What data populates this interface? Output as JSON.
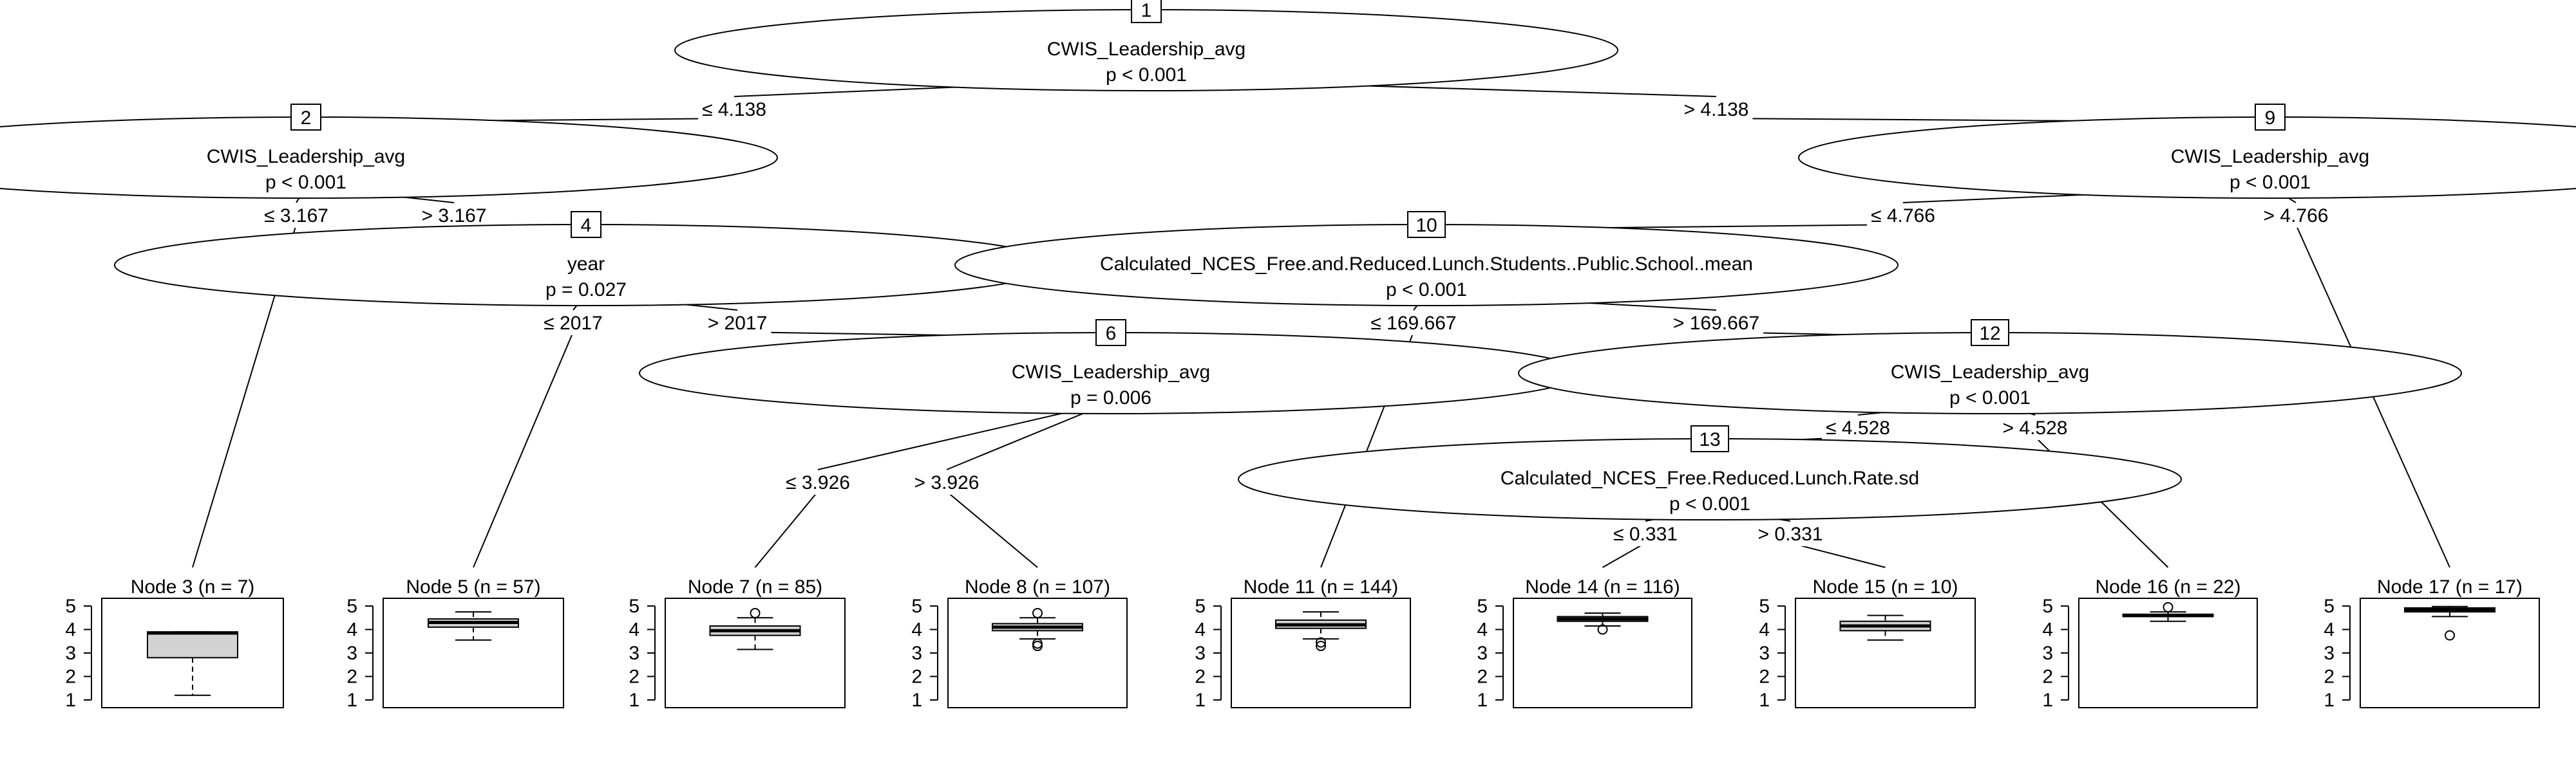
{
  "diagram": {
    "type": "conditional-inference-tree",
    "inner_nodes": [
      {
        "id": "1",
        "variable": "CWIS_Leadership_avg",
        "p": "p < 0.001"
      },
      {
        "id": "2",
        "variable": "CWIS_Leadership_avg",
        "p": "p < 0.001"
      },
      {
        "id": "4",
        "variable": "year",
        "p": "p = 0.027"
      },
      {
        "id": "6",
        "variable": "CWIS_Leadership_avg",
        "p": "p = 0.006"
      },
      {
        "id": "9",
        "variable": "CWIS_Leadership_avg",
        "p": "p < 0.001"
      },
      {
        "id": "10",
        "variable": "Calculated_NCES_Free.and.Reduced.Lunch.Students..Public.School..mean",
        "p": "p < 0.001"
      },
      {
        "id": "12",
        "variable": "CWIS_Leadership_avg",
        "p": "p < 0.001"
      },
      {
        "id": "13",
        "variable": "Calculated_NCES_Free.Reduced.Lunch.Rate.sd",
        "p": "p < 0.001"
      }
    ],
    "edges": [
      {
        "from": "1",
        "to": "2",
        "label": "≤ 4.138"
      },
      {
        "from": "1",
        "to": "9",
        "label": "> 4.138"
      },
      {
        "from": "2",
        "to": "3",
        "label": "≤ 3.167"
      },
      {
        "from": "2",
        "to": "4",
        "label": "> 3.167"
      },
      {
        "from": "4",
        "to": "5",
        "label": "≤ 2017"
      },
      {
        "from": "4",
        "to": "6",
        "label": "> 2017"
      },
      {
        "from": "6",
        "to": "7",
        "label": "≤ 3.926"
      },
      {
        "from": "6",
        "to": "8",
        "label": "> 3.926"
      },
      {
        "from": "9",
        "to": "10",
        "label": "≤ 4.766"
      },
      {
        "from": "9",
        "to": "17",
        "label": "> 4.766"
      },
      {
        "from": "10",
        "to": "11",
        "label": "≤ 169.667"
      },
      {
        "from": "10",
        "to": "12",
        "label": "> 169.667"
      },
      {
        "from": "12",
        "to": "13",
        "label": "≤ 4.528"
      },
      {
        "from": "12",
        "to": "16",
        "label": "> 4.528"
      },
      {
        "from": "13",
        "to": "14",
        "label": "≤ 0.331"
      },
      {
        "from": "13",
        "to": "15",
        "label": "> 0.331"
      }
    ],
    "terminal_nodes": [
      {
        "id": "3",
        "title": "Node 3 (n = 7)",
        "min": 1.2,
        "q1": 2.8,
        "median": 3.85,
        "q3": 3.9,
        "max": 3.9,
        "outliers": []
      },
      {
        "id": "5",
        "title": "Node 5 (n = 57)",
        "min": 3.55,
        "q1": 4.1,
        "median": 4.3,
        "q3": 4.45,
        "max": 4.75,
        "outliers": []
      },
      {
        "id": "7",
        "title": "Node 7 (n = 85)",
        "min": 3.15,
        "q1": 3.75,
        "median": 3.95,
        "q3": 4.15,
        "max": 4.5,
        "outliers": [
          4.7
        ]
      },
      {
        "id": "8",
        "title": "Node 8 (n = 107)",
        "min": 3.6,
        "q1": 3.95,
        "median": 4.1,
        "q3": 4.25,
        "max": 4.5,
        "outliers": [
          4.7,
          3.4,
          3.3
        ]
      },
      {
        "id": "11",
        "title": "Node 11 (n = 144)",
        "min": 3.6,
        "q1": 4.05,
        "median": 4.2,
        "q3": 4.4,
        "max": 4.75,
        "outliers": [
          3.45,
          3.3
        ]
      },
      {
        "id": "14",
        "title": "Node 14 (n = 116)",
        "min": 4.15,
        "q1": 4.35,
        "median": 4.45,
        "q3": 4.55,
        "max": 4.7,
        "outliers": [
          4.0
        ]
      },
      {
        "id": "15",
        "title": "Node 15 (n = 10)",
        "min": 3.55,
        "q1": 3.95,
        "median": 4.15,
        "q3": 4.35,
        "max": 4.6,
        "outliers": []
      },
      {
        "id": "16",
        "title": "Node 16 (n = 22)",
        "min": 4.35,
        "q1": 4.55,
        "median": 4.6,
        "q3": 4.65,
        "max": 4.75,
        "outliers": [
          4.95
        ]
      },
      {
        "id": "17",
        "title": "Node 17 (n = 17)",
        "min": 4.55,
        "q1": 4.75,
        "median": 4.85,
        "q3": 4.92,
        "max": 4.98,
        "outliers": [
          3.75
        ]
      }
    ],
    "y_axis": {
      "min": 1,
      "max": 5,
      "ticks": [
        "1",
        "2",
        "3",
        "4",
        "5"
      ]
    }
  }
}
